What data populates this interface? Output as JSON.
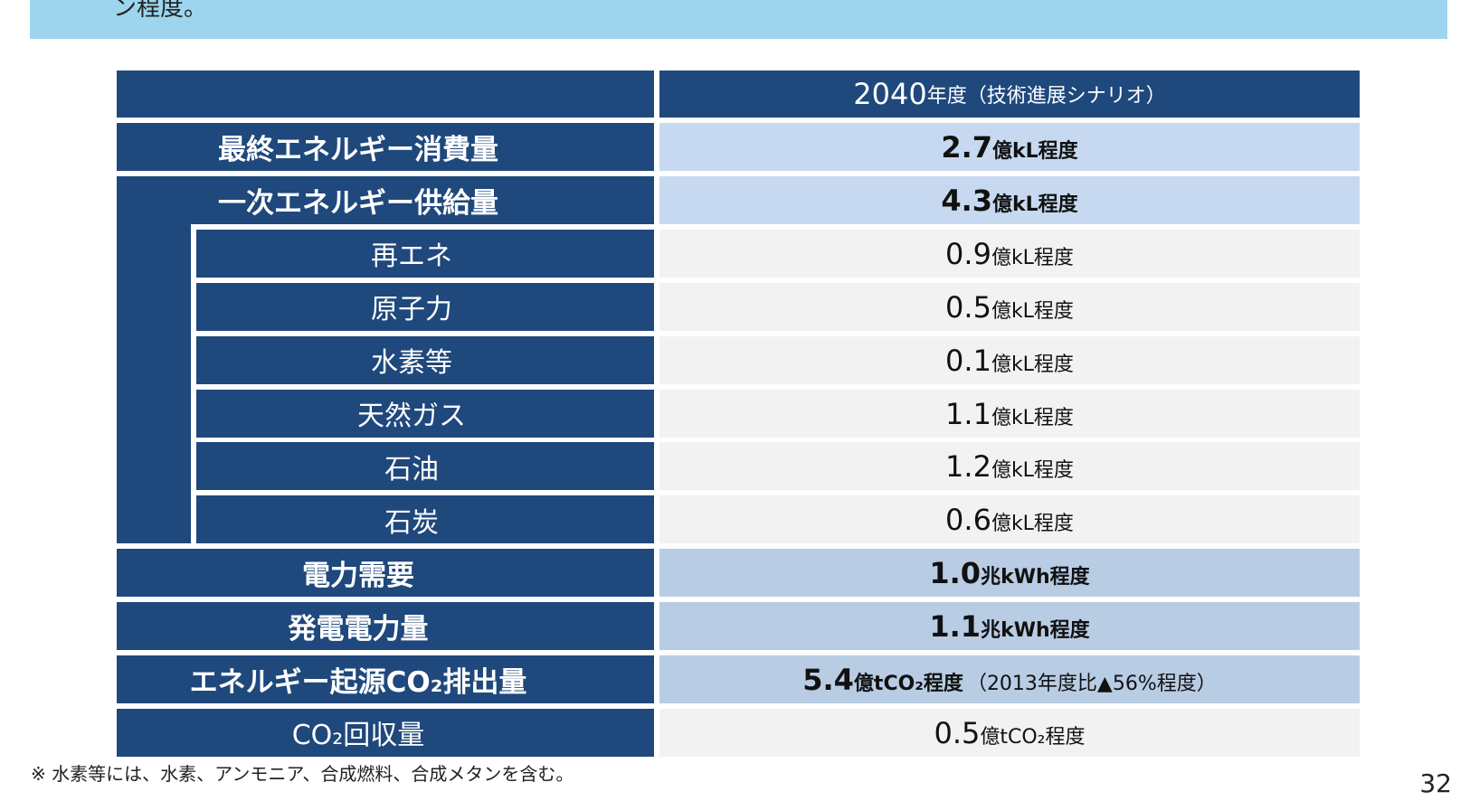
{
  "banner": {
    "text": "ン程度。",
    "color": "#9dd5ee"
  },
  "table": {
    "header": {
      "year": "2040",
      "rest": "年度（技術進展シナリオ）"
    },
    "rows": [
      {
        "label": "最終エネルギー消費量",
        "value": "2.7",
        "unit": "億kL程度",
        "emphasis": true,
        "indent": false,
        "color": "#c6d9f0"
      },
      {
        "label": "一次エネルギー供給量",
        "value": "4.3",
        "unit": "億kL程度",
        "emphasis": true,
        "indent": false,
        "color": "#c6d9f0"
      },
      {
        "label": "再エネ",
        "value": "0.9",
        "unit": "億kL程度",
        "emphasis": false,
        "indent": true,
        "color": "#f2f2f2"
      },
      {
        "label": "原子力",
        "value": "0.5",
        "unit": "億kL程度",
        "emphasis": false,
        "indent": true,
        "color": "#f2f2f2"
      },
      {
        "label": "水素等",
        "value": "0.1",
        "unit": "億kL程度",
        "emphasis": false,
        "indent": true,
        "color": "#f2f2f2"
      },
      {
        "label": "天然ガス",
        "value": "1.1",
        "unit": "億kL程度",
        "emphasis": false,
        "indent": true,
        "color": "#f2f2f2"
      },
      {
        "label": "石油",
        "value": "1.2",
        "unit": "億kL程度",
        "emphasis": false,
        "indent": true,
        "color": "#f2f2f2"
      },
      {
        "label": "石炭",
        "value": "0.6",
        "unit": "億kL程度",
        "emphasis": false,
        "indent": true,
        "color": "#f2f2f2"
      },
      {
        "label": "電力需要",
        "value": "1.0",
        "unit": "兆kWh程度",
        "emphasis": true,
        "indent": false,
        "color": "#b8cce4"
      },
      {
        "label": "発電電力量",
        "value": "1.1",
        "unit": "兆kWh程度",
        "emphasis": true,
        "indent": false,
        "color": "#b8cce4"
      },
      {
        "label": "エネルギー起源CO₂排出量",
        "value": "5.4",
        "unit": "億tCO₂程度",
        "note": "（2013年度比▲56%程度）",
        "emphasis": true,
        "indent": false,
        "color": "#b8cce4"
      },
      {
        "label": "CO₂回収量",
        "value": "0.5",
        "unit": "億tCO₂程度",
        "emphasis": false,
        "indent": false,
        "color": "#f2f2f2"
      }
    ]
  },
  "footnote": "※ 水素等には、水素、アンモニア、合成燃料、合成メタンを含む。",
  "page_number": "32"
}
